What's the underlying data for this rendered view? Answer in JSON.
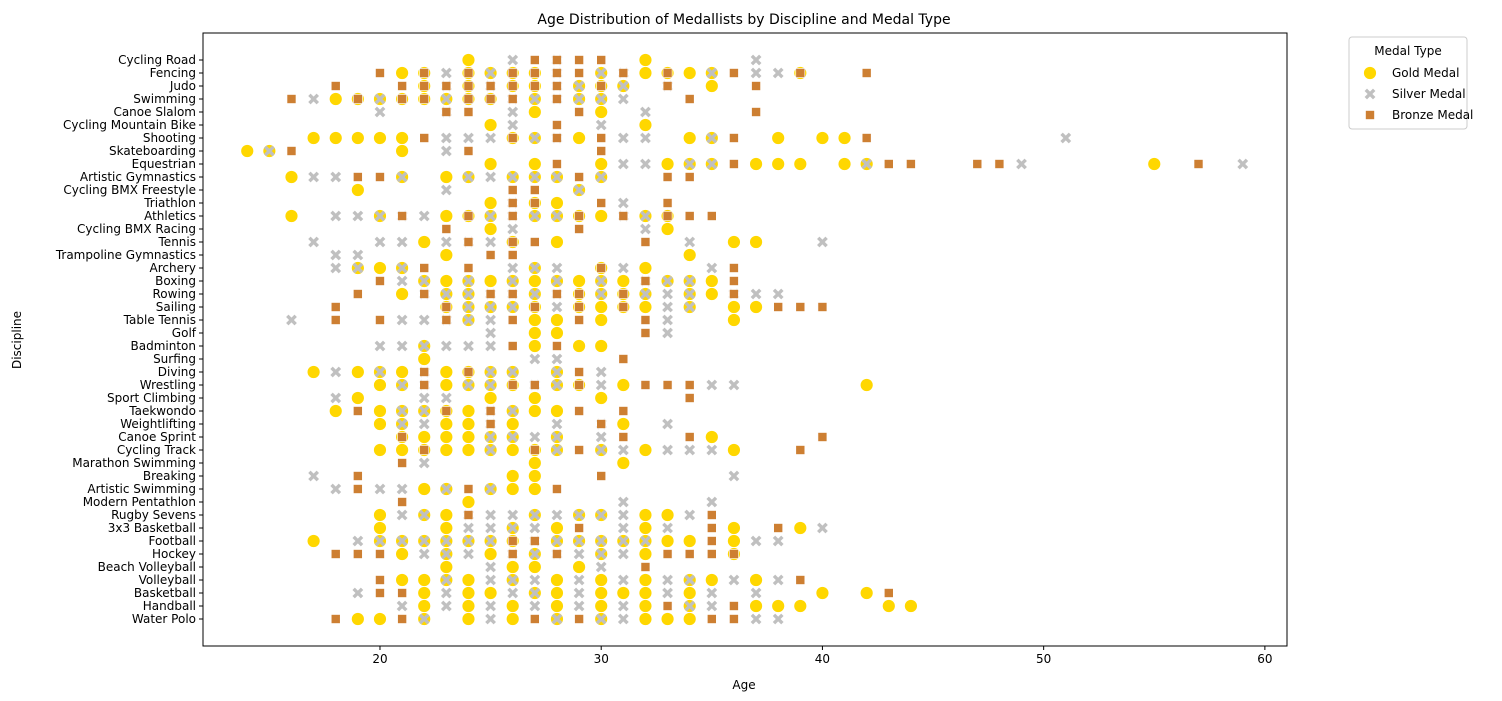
{
  "chart_data": {
    "type": "scatter",
    "title": "Age Distribution of Medallists by Discipline and Medal Type",
    "xlabel": "Age",
    "ylabel": "Discipline",
    "xlim": [
      12,
      61
    ],
    "xticks": [
      20,
      30,
      40,
      50,
      60
    ],
    "grid": false,
    "legend": {
      "title": "Medal Type",
      "placement": "outside-top-right"
    },
    "categories": [
      "Cycling Road",
      "Fencing",
      "Judo",
      "Swimming",
      "Canoe Slalom",
      "Cycling Mountain Bike",
      "Shooting",
      "Skateboarding",
      "Equestrian",
      "Artistic Gymnastics",
      "Cycling BMX Freestyle",
      "Triathlon",
      "Athletics",
      "Cycling BMX Racing",
      "Tennis",
      "Trampoline Gymnastics",
      "Archery",
      "Boxing",
      "Rowing",
      "Sailing",
      "Table Tennis",
      "Golf",
      "Badminton",
      "Surfing",
      "Diving",
      "Wrestling",
      "Sport Climbing",
      "Taekwondo",
      "Weightlifting",
      "Canoe Sprint",
      "Cycling Track",
      "Marathon Swimming",
      "Breaking",
      "Artistic Swimming",
      "Modern Pentathlon",
      "Rugby Sevens",
      "3x3 Basketball",
      "Football",
      "Hockey",
      "Beach Volleyball",
      "Volleyball",
      "Basketball",
      "Handball",
      "Water Polo"
    ],
    "series": [
      {
        "name": "Gold Medal",
        "color": "#FFD700",
        "marker": "circle",
        "points": {
          "Cycling Road": [
            24,
            32
          ],
          "Fencing": [
            21,
            22,
            24,
            25,
            26,
            27,
            30,
            32,
            33,
            34,
            35,
            39
          ],
          "Judo": [
            22,
            24,
            26,
            27,
            29,
            30,
            31,
            35
          ],
          "Swimming": [
            18,
            19,
            20,
            21,
            22,
            23,
            24,
            25,
            27,
            29,
            30
          ],
          "Canoe Slalom": [
            27,
            30
          ],
          "Cycling Mountain Bike": [
            25,
            32
          ],
          "Shooting": [
            17,
            18,
            19,
            20,
            21,
            26,
            27,
            29,
            34,
            35,
            38,
            40,
            41
          ],
          "Skateboarding": [
            14,
            15,
            21
          ],
          "Equestrian": [
            25,
            27,
            30,
            33,
            34,
            35,
            37,
            38,
            39,
            41,
            42,
            55
          ],
          "Artistic Gymnastics": [
            16,
            21,
            23,
            24,
            26,
            27,
            28,
            30
          ],
          "Cycling BMX Freestyle": [
            19,
            29
          ],
          "Triathlon": [
            25,
            27,
            28
          ],
          "Athletics": [
            16,
            20,
            23,
            24,
            25,
            27,
            28,
            29,
            30,
            32,
            33
          ],
          "Cycling BMX Racing": [
            25,
            33
          ],
          "Tennis": [
            22,
            26,
            28,
            36,
            37
          ],
          "Trampoline Gymnastics": [
            23,
            34
          ],
          "Archery": [
            19,
            20,
            21,
            27,
            30,
            32
          ],
          "Boxing": [
            22,
            23,
            24,
            25,
            26,
            27,
            28,
            29,
            30,
            31,
            33,
            34,
            35
          ],
          "Rowing": [
            21,
            23,
            24,
            27,
            29,
            30,
            31,
            32,
            34,
            35
          ],
          "Sailing": [
            23,
            24,
            25,
            26,
            27,
            29,
            30,
            31,
            32,
            34,
            36,
            37
          ],
          "Table Tennis": [
            24,
            27,
            28,
            30,
            36
          ],
          "Golf": [
            27,
            28
          ],
          "Badminton": [
            22,
            27,
            29,
            30
          ],
          "Surfing": [
            22
          ],
          "Diving": [
            17,
            19,
            20,
            21,
            23,
            24,
            25,
            26,
            28
          ],
          "Wrestling": [
            20,
            21,
            23,
            24,
            25,
            26,
            28,
            29,
            31,
            42
          ],
          "Sport Climbing": [
            19,
            25,
            27,
            30
          ],
          "Taekwondo": [
            18,
            20,
            21,
            22,
            23,
            24,
            26,
            27,
            28
          ],
          "Weightlifting": [
            20,
            21,
            23,
            24,
            26,
            31
          ],
          "Canoe Sprint": [
            21,
            22,
            23,
            24,
            25,
            26,
            28,
            35
          ],
          "Cycling Track": [
            20,
            21,
            22,
            23,
            24,
            25,
            26,
            27,
            28,
            30,
            32,
            36
          ],
          "Marathon Swimming": [
            27,
            31
          ],
          "Breaking": [
            26,
            27
          ],
          "Artistic Swimming": [
            22,
            23,
            25,
            26,
            27
          ],
          "Modern Pentathlon": [
            24
          ],
          "Rugby Sevens": [
            20,
            22,
            23,
            27,
            29,
            30,
            32,
            33
          ],
          "3x3 Basketball": [
            20,
            23,
            26,
            28,
            32,
            36,
            39
          ],
          "Football": [
            17,
            20,
            21,
            22,
            23,
            24,
            25,
            26,
            28,
            29,
            30,
            31,
            32,
            33,
            34,
            36
          ],
          "Hockey": [
            21,
            23,
            25,
            27,
            30,
            32,
            36
          ],
          "Beach Volleyball": [
            23,
            26,
            27,
            29
          ],
          "Volleyball": [
            21,
            22,
            23,
            24,
            26,
            28,
            30,
            32,
            34,
            35,
            37
          ],
          "Basketball": [
            22,
            24,
            25,
            27,
            28,
            30,
            31,
            32,
            34,
            40,
            42
          ],
          "Handball": [
            22,
            24,
            26,
            28,
            30,
            32,
            34,
            37,
            38,
            39,
            43,
            44
          ],
          "Water Polo": [
            19,
            20,
            22,
            24,
            26,
            28,
            30,
            32,
            33,
            34
          ]
        }
      },
      {
        "name": "Silver Medal",
        "color": "#C0C0C0",
        "marker": "x",
        "points": {
          "Cycling Road": [
            26,
            28,
            37
          ],
          "Fencing": [
            22,
            23,
            25,
            26,
            27,
            28,
            30,
            31,
            35,
            37,
            38,
            39
          ],
          "Judo": [
            23,
            24,
            25,
            26,
            28,
            29,
            30,
            31,
            33
          ],
          "Swimming": [
            17,
            19,
            20,
            21,
            23,
            24,
            25,
            26,
            27,
            28,
            29,
            30,
            31
          ],
          "Canoe Slalom": [
            20,
            23,
            26,
            32
          ],
          "Cycling Mountain Bike": [
            26,
            30
          ],
          "Shooting": [
            23,
            24,
            25,
            27,
            28,
            31,
            32,
            35,
            51
          ],
          "Skateboarding": [
            15,
            23
          ],
          "Equestrian": [
            31,
            32,
            34,
            35,
            42,
            49,
            59
          ],
          "Artistic Gymnastics": [
            17,
            18,
            21,
            24,
            25,
            26,
            27,
            28,
            30
          ],
          "Cycling BMX Freestyle": [
            23,
            29
          ],
          "Triathlon": [
            26,
            31
          ],
          "Athletics": [
            18,
            19,
            20,
            21,
            22,
            24,
            25,
            26,
            27,
            28,
            31,
            32
          ],
          "Cycling BMX Racing": [
            26,
            32
          ],
          "Tennis": [
            17,
            20,
            21,
            23,
            24,
            25,
            26,
            34,
            40
          ],
          "Trampoline Gymnastics": [
            18,
            19
          ],
          "Archery": [
            18,
            19,
            21,
            26,
            27,
            28,
            31,
            35
          ],
          "Boxing": [
            21,
            22,
            24,
            26,
            28,
            30,
            32,
            33,
            34
          ],
          "Rowing": [
            22,
            23,
            24,
            25,
            26,
            27,
            28,
            30,
            31,
            32,
            33,
            34,
            36,
            37,
            38
          ],
          "Sailing": [
            23,
            24,
            25,
            26,
            28,
            33,
            34
          ],
          "Table Tennis": [
            16,
            21,
            22,
            23,
            24,
            25,
            33
          ],
          "Golf": [
            25,
            33
          ],
          "Badminton": [
            20,
            21,
            22,
            23,
            24,
            25
          ],
          "Surfing": [
            27,
            28
          ],
          "Diving": [
            18,
            20,
            22,
            25,
            26,
            28,
            30
          ],
          "Wrestling": [
            21,
            22,
            24,
            25,
            27,
            28,
            30,
            35,
            36
          ],
          "Sport Climbing": [
            18,
            22,
            23
          ],
          "Taekwondo": [
            21,
            22,
            25,
            26
          ],
          "Weightlifting": [
            21,
            22,
            25,
            28,
            30,
            33
          ],
          "Canoe Sprint": [
            25,
            26,
            27,
            28,
            30
          ],
          "Cycling Track": [
            25,
            28,
            30,
            31,
            33,
            34,
            35
          ],
          "Marathon Swimming": [
            22
          ],
          "Breaking": [
            17,
            36
          ],
          "Artistic Swimming": [
            18,
            20,
            21,
            23,
            25
          ],
          "Modern Pentathlon": [
            31,
            35
          ],
          "Rugby Sevens": [
            21,
            22,
            24,
            25,
            26,
            27,
            28,
            29,
            30,
            31,
            34
          ],
          "3x3 Basketball": [
            24,
            25,
            26,
            27,
            31,
            33,
            40
          ],
          "Football": [
            19,
            20,
            21,
            22,
            23,
            24,
            25,
            27,
            28,
            29,
            30,
            31,
            32,
            37,
            38
          ],
          "Hockey": [
            22,
            23,
            24,
            26,
            27,
            28,
            29,
            30,
            31
          ],
          "Beach Volleyball": [
            25,
            30
          ],
          "Volleyball": [
            23,
            25,
            26,
            27,
            29,
            31,
            33,
            34,
            36,
            38
          ],
          "Basketball": [
            19,
            23,
            26,
            27,
            29,
            33,
            35,
            37
          ],
          "Handball": [
            21,
            23,
            25,
            27,
            29,
            31,
            34,
            35
          ],
          "Water Polo": [
            22,
            25,
            28,
            30,
            31,
            37,
            38
          ]
        }
      },
      {
        "name": "Bronze Medal",
        "color": "#CD7F32",
        "marker": "square",
        "points": {
          "Cycling Road": [
            27,
            28,
            29,
            30
          ],
          "Fencing": [
            20,
            22,
            24,
            26,
            27,
            28,
            29,
            31,
            33,
            36,
            39,
            42
          ],
          "Judo": [
            18,
            21,
            22,
            23,
            24,
            25,
            26,
            27,
            28,
            30,
            33,
            37
          ],
          "Swimming": [
            16,
            19,
            21,
            22,
            24,
            25,
            26,
            28,
            34
          ],
          "Canoe Slalom": [
            23,
            24,
            29,
            37
          ],
          "Cycling Mountain Bike": [
            28
          ],
          "Shooting": [
            22,
            26,
            28,
            30,
            36,
            42
          ],
          "Skateboarding": [
            16,
            24,
            30
          ],
          "Equestrian": [
            28,
            36,
            43,
            44,
            47,
            48,
            57
          ],
          "Artistic Gymnastics": [
            19,
            20,
            29,
            33,
            34
          ],
          "Cycling BMX Freestyle": [
            26,
            27
          ],
          "Triathlon": [
            26,
            27,
            30,
            33
          ],
          "Athletics": [
            21,
            24,
            26,
            29,
            31,
            33,
            34,
            35
          ],
          "Cycling BMX Racing": [
            23,
            29
          ],
          "Tennis": [
            24,
            26,
            27,
            32
          ],
          "Trampoline Gymnastics": [
            25,
            26
          ],
          "Archery": [
            22,
            24,
            30,
            36
          ],
          "Boxing": [
            20,
            32,
            36
          ],
          "Rowing": [
            19,
            22,
            25,
            26,
            28,
            29,
            31,
            36
          ],
          "Sailing": [
            18,
            23,
            27,
            29,
            31,
            38,
            39,
            40
          ],
          "Table Tennis": [
            18,
            20,
            23,
            26,
            29,
            32
          ],
          "Golf": [
            32
          ],
          "Badminton": [
            26,
            28
          ],
          "Surfing": [
            31
          ],
          "Diving": [
            22,
            24,
            29
          ],
          "Wrestling": [
            22,
            26,
            27,
            29,
            32,
            33,
            34
          ],
          "Sport Climbing": [
            34
          ],
          "Taekwondo": [
            19,
            23,
            25,
            29,
            31
          ],
          "Weightlifting": [
            25,
            30
          ],
          "Canoe Sprint": [
            21,
            31,
            34,
            40
          ],
          "Cycling Track": [
            22,
            27,
            29,
            39
          ],
          "Marathon Swimming": [
            21
          ],
          "Breaking": [
            19,
            30
          ],
          "Artistic Swimming": [
            19,
            24,
            28
          ],
          "Modern Pentathlon": [
            21
          ],
          "Rugby Sevens": [
            24,
            35
          ],
          "3x3 Basketball": [
            29,
            35,
            38
          ],
          "Football": [
            26,
            27,
            35
          ],
          "Hockey": [
            18,
            19,
            20,
            26,
            28,
            33,
            34,
            35,
            36
          ],
          "Beach Volleyball": [
            32
          ],
          "Volleyball": [
            20,
            39
          ],
          "Basketball": [
            20,
            21,
            43
          ],
          "Handball": [
            33,
            36
          ],
          "Water Polo": [
            18,
            21,
            27,
            29,
            35,
            36
          ]
        }
      }
    ]
  }
}
